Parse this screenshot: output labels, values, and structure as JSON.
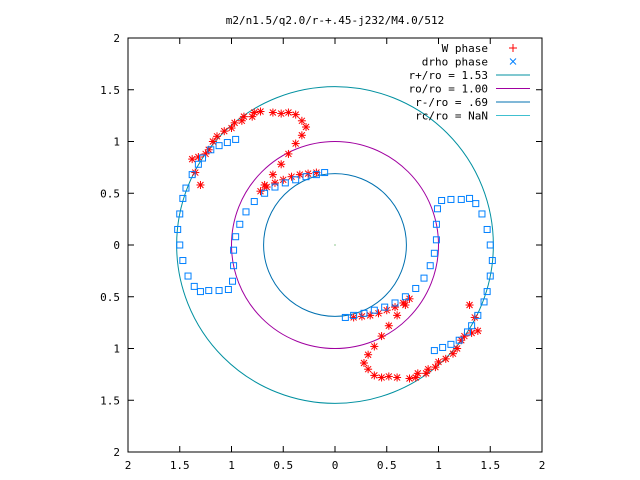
{
  "chart_data": {
    "type": "scatter",
    "title": "m2/n1.5/q2.0/r-+.45-j232/M4.0/512",
    "xlim": [
      -2,
      2
    ],
    "ylim": [
      -2,
      2
    ],
    "x_ticks": [
      -2,
      -1.5,
      -1,
      -0.5,
      0,
      0.5,
      1,
      1.5,
      2
    ],
    "y_ticks": [
      -2,
      -1.5,
      -1,
      -0.5,
      0,
      0.5,
      1,
      1.5,
      2
    ],
    "x_tick_labels": [
      "2",
      "1.5",
      "1",
      "0.5",
      "0",
      "0.5",
      "1",
      "1.5",
      "2"
    ],
    "y_tick_labels": [
      "2",
      "1.5",
      "1",
      "0.5",
      "0",
      "0.5",
      "1",
      "1.5",
      "2"
    ],
    "grid": false,
    "legend_position": "top-right",
    "legend": [
      {
        "label": "W phase",
        "kind": "points",
        "marker": "+",
        "color": "#ff0000"
      },
      {
        "label": "drho phase",
        "kind": "points",
        "marker": "x",
        "color": "#0080ff"
      },
      {
        "label": "r+/ro = 1.53",
        "kind": "line",
        "color": "#0090a0"
      },
      {
        "label": "ro/ro = 1.00",
        "kind": "line",
        "color": "#a000a0"
      },
      {
        "label": "r-/ro = .69",
        "kind": "line",
        "color": "#0070b0"
      },
      {
        "label": "rc/ro = NaN",
        "kind": "line",
        "color": "#40c0d0"
      }
    ],
    "circles": [
      {
        "name": "r+/ro = 1.53",
        "r": 1.53,
        "color": "#0090a0"
      },
      {
        "name": "ro/ro = 1.00",
        "r": 1.0,
        "color": "#a000a0"
      },
      {
        "name": "r-/ro = .69",
        "r": 0.69,
        "color": "#0070b0"
      }
    ],
    "series": [
      {
        "name": "W phase",
        "color": "#ff0000",
        "marker": "*",
        "points": [
          [
            -1.3,
            0.58
          ],
          [
            -1.35,
            0.7
          ],
          [
            -1.38,
            0.83
          ],
          [
            -1.32,
            0.85
          ],
          [
            -1.25,
            0.88
          ],
          [
            -1.22,
            0.92
          ],
          [
            -1.18,
            1.0
          ],
          [
            -1.14,
            1.05
          ],
          [
            -1.07,
            1.1
          ],
          [
            -1.0,
            1.13
          ],
          [
            -0.97,
            1.18
          ],
          [
            -0.9,
            1.2
          ],
          [
            -0.88,
            1.24
          ],
          [
            -0.8,
            1.24
          ],
          [
            -0.78,
            1.28
          ],
          [
            -0.72,
            1.29
          ],
          [
            -0.6,
            1.28
          ],
          [
            -0.52,
            1.27
          ],
          [
            -0.45,
            1.28
          ],
          [
            -0.38,
            1.26
          ],
          [
            -0.32,
            1.2
          ],
          [
            -0.28,
            1.14
          ],
          [
            -0.32,
            1.06
          ],
          [
            -0.38,
            0.98
          ],
          [
            -0.45,
            0.88
          ],
          [
            -0.52,
            0.78
          ],
          [
            -0.6,
            0.68
          ],
          [
            -0.68,
            0.58
          ],
          [
            -0.72,
            0.52
          ],
          [
            -0.66,
            0.56
          ],
          [
            -0.58,
            0.6
          ],
          [
            -0.5,
            0.63
          ],
          [
            -0.42,
            0.66
          ],
          [
            -0.34,
            0.68
          ],
          [
            -0.26,
            0.69
          ],
          [
            -0.18,
            0.7
          ],
          [
            1.3,
            -0.58
          ],
          [
            1.35,
            -0.7
          ],
          [
            1.38,
            -0.83
          ],
          [
            1.32,
            -0.85
          ],
          [
            1.25,
            -0.88
          ],
          [
            1.22,
            -0.92
          ],
          [
            1.18,
            -1.0
          ],
          [
            1.14,
            -1.05
          ],
          [
            1.07,
            -1.1
          ],
          [
            1.0,
            -1.13
          ],
          [
            0.97,
            -1.18
          ],
          [
            0.9,
            -1.2
          ],
          [
            0.88,
            -1.24
          ],
          [
            0.8,
            -1.24
          ],
          [
            0.78,
            -1.28
          ],
          [
            0.72,
            -1.29
          ],
          [
            0.6,
            -1.28
          ],
          [
            0.52,
            -1.27
          ],
          [
            0.45,
            -1.28
          ],
          [
            0.38,
            -1.26
          ],
          [
            0.32,
            -1.2
          ],
          [
            0.28,
            -1.14
          ],
          [
            0.32,
            -1.06
          ],
          [
            0.38,
            -0.98
          ],
          [
            0.45,
            -0.88
          ],
          [
            0.52,
            -0.78
          ],
          [
            0.6,
            -0.68
          ],
          [
            0.68,
            -0.58
          ],
          [
            0.72,
            -0.52
          ],
          [
            0.66,
            -0.56
          ],
          [
            0.58,
            -0.6
          ],
          [
            0.5,
            -0.63
          ],
          [
            0.42,
            -0.66
          ],
          [
            0.34,
            -0.68
          ],
          [
            0.26,
            -0.69
          ],
          [
            0.18,
            -0.7
          ]
        ]
      },
      {
        "name": "drho phase",
        "color": "#0080ff",
        "marker": "square",
        "points": [
          [
            -0.1,
            0.7
          ],
          [
            -0.18,
            0.68
          ],
          [
            -0.28,
            0.66
          ],
          [
            -0.38,
            0.63
          ],
          [
            -0.48,
            0.6
          ],
          [
            -0.58,
            0.56
          ],
          [
            -0.68,
            0.5
          ],
          [
            -0.78,
            0.42
          ],
          [
            -0.86,
            0.32
          ],
          [
            -0.92,
            0.2
          ],
          [
            -0.96,
            0.08
          ],
          [
            -0.98,
            -0.05
          ],
          [
            -0.98,
            -0.2
          ],
          [
            -0.99,
            -0.35
          ],
          [
            -1.03,
            -0.43
          ],
          [
            -1.12,
            -0.44
          ],
          [
            -1.22,
            -0.44
          ],
          [
            -1.3,
            -0.45
          ],
          [
            -1.36,
            -0.4
          ],
          [
            -1.42,
            -0.3
          ],
          [
            -1.47,
            -0.15
          ],
          [
            -1.5,
            0.0
          ],
          [
            -1.52,
            0.15
          ],
          [
            -1.5,
            0.3
          ],
          [
            -1.47,
            0.45
          ],
          [
            -1.44,
            0.55
          ],
          [
            -1.38,
            0.68
          ],
          [
            -1.32,
            0.78
          ],
          [
            -1.28,
            0.84
          ],
          [
            -1.2,
            0.92
          ],
          [
            -1.12,
            0.96
          ],
          [
            -1.04,
            0.99
          ],
          [
            -0.96,
            1.02
          ],
          [
            0.1,
            -0.7
          ],
          [
            0.18,
            -0.68
          ],
          [
            0.28,
            -0.66
          ],
          [
            0.38,
            -0.63
          ],
          [
            0.48,
            -0.6
          ],
          [
            0.58,
            -0.56
          ],
          [
            0.68,
            -0.5
          ],
          [
            0.78,
            -0.42
          ],
          [
            0.86,
            -0.32
          ],
          [
            0.92,
            -0.2
          ],
          [
            0.96,
            -0.08
          ],
          [
            0.98,
            0.05
          ],
          [
            0.98,
            0.2
          ],
          [
            0.99,
            0.35
          ],
          [
            1.03,
            0.43
          ],
          [
            1.12,
            0.44
          ],
          [
            1.22,
            0.44
          ],
          [
            1.3,
            0.45
          ],
          [
            1.36,
            0.4
          ],
          [
            1.42,
            0.3
          ],
          [
            1.47,
            0.15
          ],
          [
            1.5,
            0.0
          ],
          [
            1.52,
            -0.15
          ],
          [
            1.5,
            -0.3
          ],
          [
            1.47,
            -0.45
          ],
          [
            1.44,
            -0.55
          ],
          [
            1.38,
            -0.68
          ],
          [
            1.32,
            -0.78
          ],
          [
            1.28,
            -0.84
          ],
          [
            1.2,
            -0.92
          ],
          [
            1.12,
            -0.96
          ],
          [
            1.04,
            -0.99
          ],
          [
            0.96,
            -1.02
          ]
        ]
      }
    ]
  }
}
